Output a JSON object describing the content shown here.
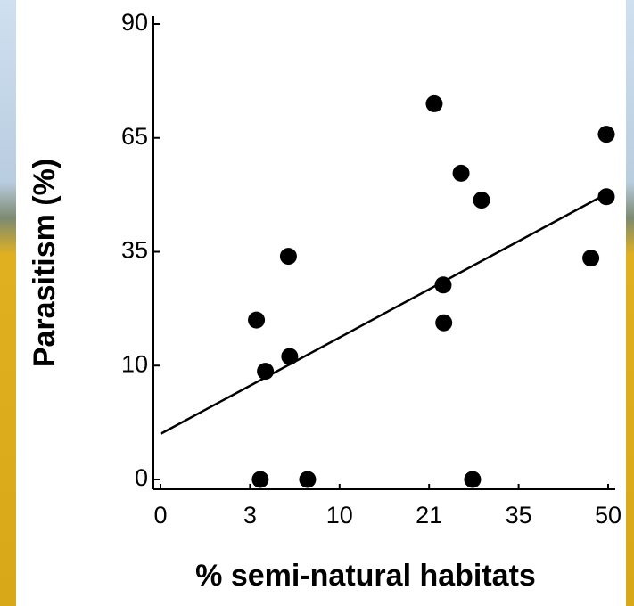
{
  "chart_data": {
    "type": "scatter",
    "x_label": "% semi-natural habitats",
    "y_label": "Parasitism (%)",
    "xlim": [
      0,
      50
    ],
    "ylim": [
      0,
      90
    ],
    "xticks": [
      0,
      3,
      10,
      21,
      35,
      50
    ],
    "yticks": [
      0,
      10,
      35,
      65,
      90
    ],
    "color": "#000000",
    "x": [
      3.5,
      3.8,
      4.2,
      6.0,
      6.1,
      7.5,
      21.8,
      23.2,
      23.3,
      26.0,
      27.8,
      29.2,
      47.1,
      49.7,
      49.7
    ],
    "values": [
      20,
      0,
      9.5,
      34,
      12,
      0,
      72.5,
      27.7,
      19.4,
      55.7,
      0,
      48.6,
      33.6,
      65.8,
      49.5
    ],
    "fit_line": {
      "x": [
        0,
        50
      ],
      "y": [
        4,
        50.5
      ]
    }
  }
}
